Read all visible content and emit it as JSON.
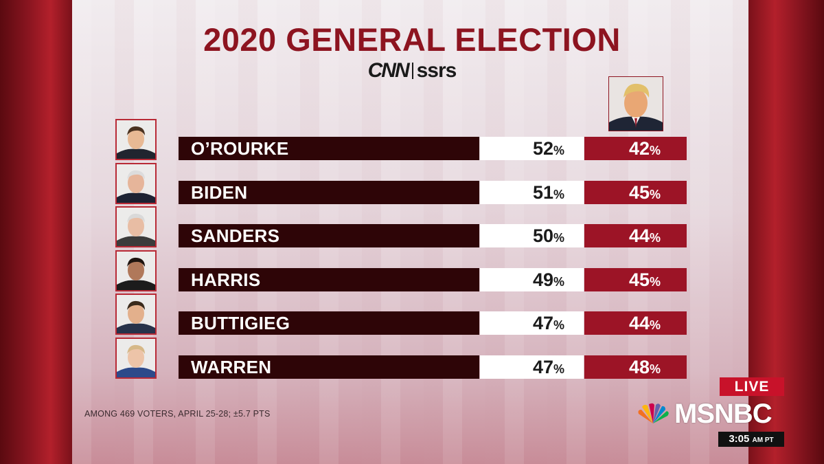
{
  "title": "2020 GENERAL ELECTION",
  "logo": {
    "cnn": "CNN",
    "ssrs": "ssrs"
  },
  "chart_data": {
    "type": "table",
    "title": "2020 GENERAL ELECTION",
    "opponent": "Trump",
    "percent_suffix": "%",
    "rows": [
      {
        "name": "O’ROURKE",
        "dem": "52",
        "rep": "42"
      },
      {
        "name": "BIDEN",
        "dem": "51",
        "rep": "45"
      },
      {
        "name": "SANDERS",
        "dem": "50",
        "rep": "44"
      },
      {
        "name": "HARRIS",
        "dem": "49",
        "rep": "45"
      },
      {
        "name": "BUTTIGIEG",
        "dem": "47",
        "rep": "44"
      },
      {
        "name": "WARREN",
        "dem": "47",
        "rep": "48"
      }
    ]
  },
  "footnote": "AMONG 469 VOTERS, APRIL 25-28; ±5.7 PTS",
  "broadcast": {
    "live": "LIVE",
    "network": "MSNBC",
    "time": "3:05",
    "ampm": "AM PT"
  },
  "colors": {
    "dark_bar": "#2e0507",
    "rep": "#9c1426",
    "title": "#8d1420",
    "live": "#c8122a"
  }
}
